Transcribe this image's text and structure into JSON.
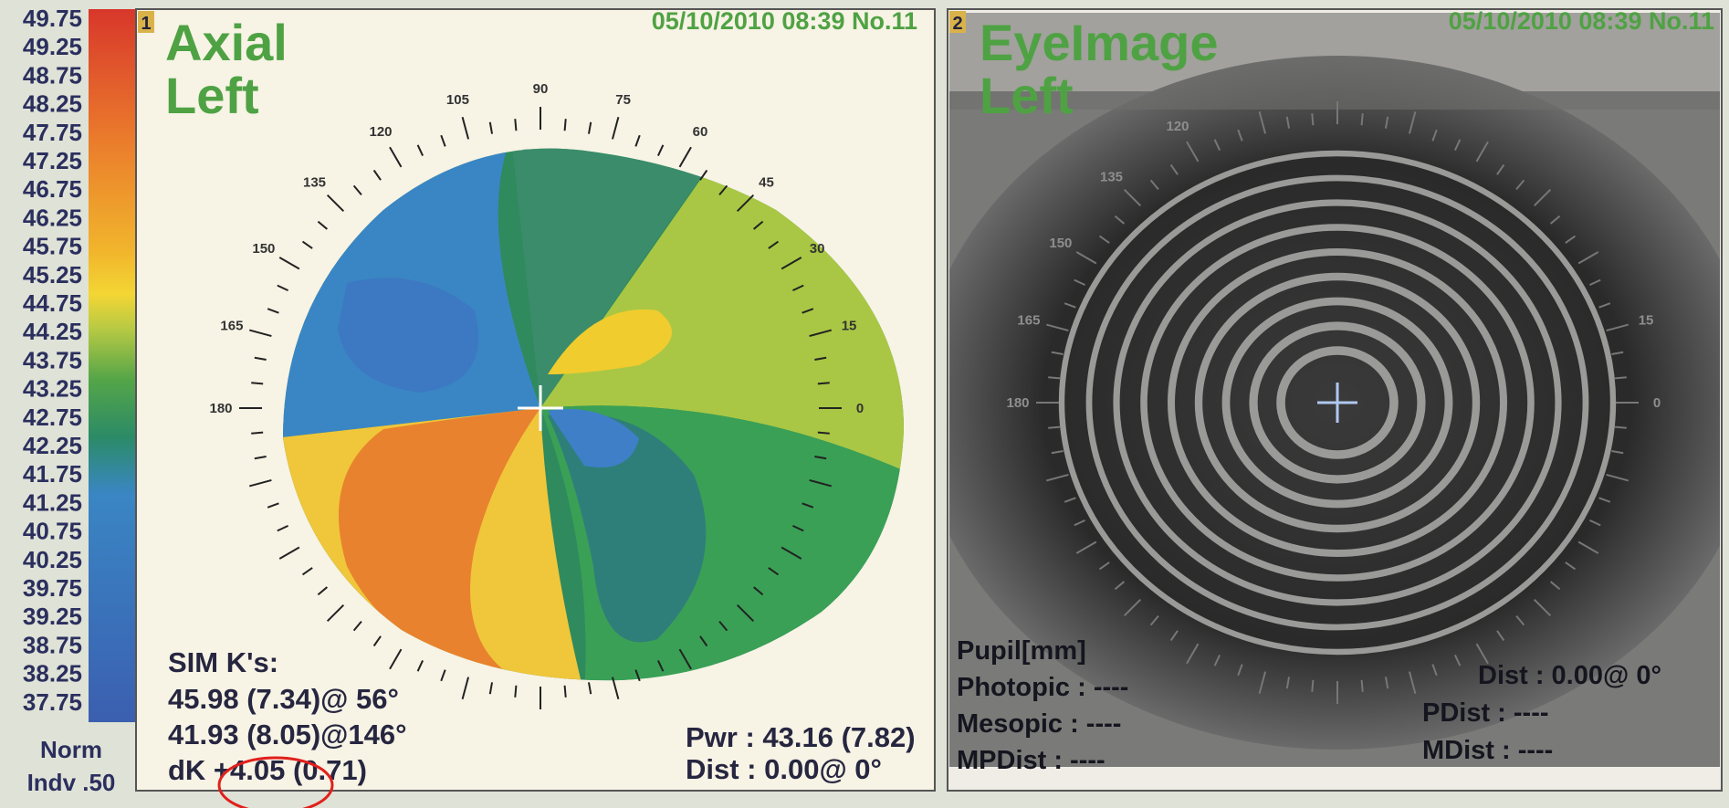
{
  "scale": {
    "labels": [
      "49.75",
      "49.25",
      "48.75",
      "48.25",
      "47.75",
      "47.25",
      "46.75",
      "46.25",
      "45.75",
      "45.25",
      "44.75",
      "44.25",
      "43.75",
      "43.25",
      "42.75",
      "42.25",
      "41.75",
      "41.25",
      "40.75",
      "40.25",
      "39.75",
      "39.25",
      "38.75",
      "38.25",
      "37.75"
    ],
    "norm": "Norm",
    "indv": "Indv .50"
  },
  "panel1": {
    "number": "1",
    "title": [
      "Axial",
      "Left"
    ],
    "datetime": "05/10/2010 08:39 No.11",
    "angles": [
      90,
      105,
      120,
      135,
      150,
      165,
      180,
      75,
      60,
      45,
      30,
      15,
      0
    ],
    "sim_k": {
      "heading": "SIM K's:",
      "lines": [
        "45.98 (7.34)@ 56°",
        "41.93 (8.05)@146°",
        "dK +4.05 (0.71)"
      ]
    },
    "power": [
      "Pwr : 43.16 (7.82)",
      "Dist : 0.00@ 0°"
    ]
  },
  "panel2": {
    "number": "2",
    "title": [
      "EyeImage",
      "Left"
    ],
    "datetime": "05/10/2010 08:39 No.11",
    "angles": [
      120,
      135,
      150,
      165,
      180,
      15,
      0
    ],
    "left": [
      "Pupil[mm]",
      "Photopic : ----",
      "Mesopic : ----",
      "MPDist : ----"
    ],
    "right": [
      "Dist : 0.00@ 0°",
      "PDist : ----",
      "MDist : ----"
    ]
  }
}
